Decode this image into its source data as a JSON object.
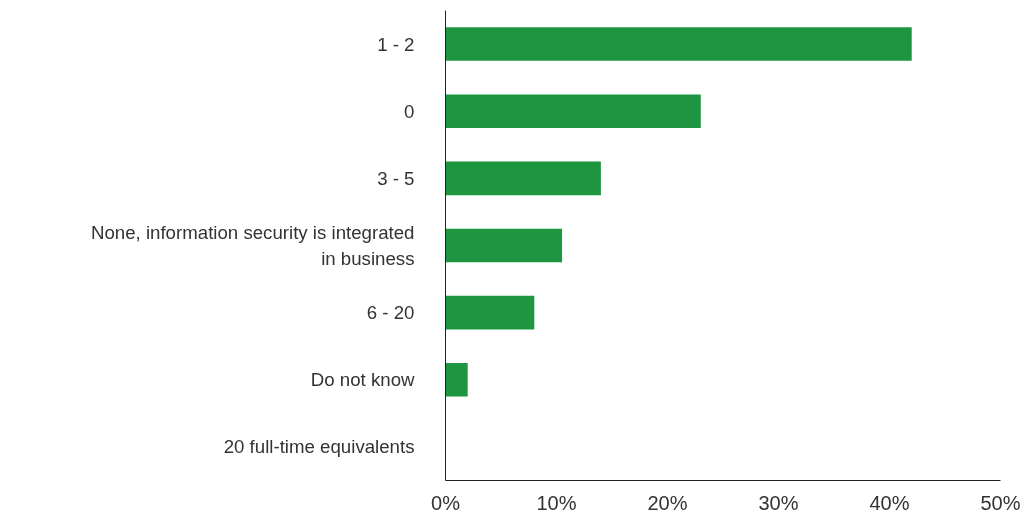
{
  "chart_data": {
    "type": "bar",
    "orientation": "horizontal",
    "categories": [
      "1 - 2",
      "0",
      "3 - 5",
      "None, information security is integrated in business",
      "6 - 20",
      "Do not know",
      "20 full-time equivalents"
    ],
    "values": [
      42.0,
      23.0,
      14.0,
      10.5,
      8.0,
      2.0,
      0
    ],
    "color": "#1e9641",
    "xlim": [
      0,
      50
    ],
    "xticks": [
      {
        "value": 0,
        "label": "0%"
      },
      {
        "value": 10,
        "label": "10%"
      },
      {
        "value": 20,
        "label": "20%"
      },
      {
        "value": 30,
        "label": "30%"
      },
      {
        "value": 40,
        "label": "40%"
      },
      {
        "value": 50,
        "label": "50%"
      }
    ],
    "grid": false
  }
}
